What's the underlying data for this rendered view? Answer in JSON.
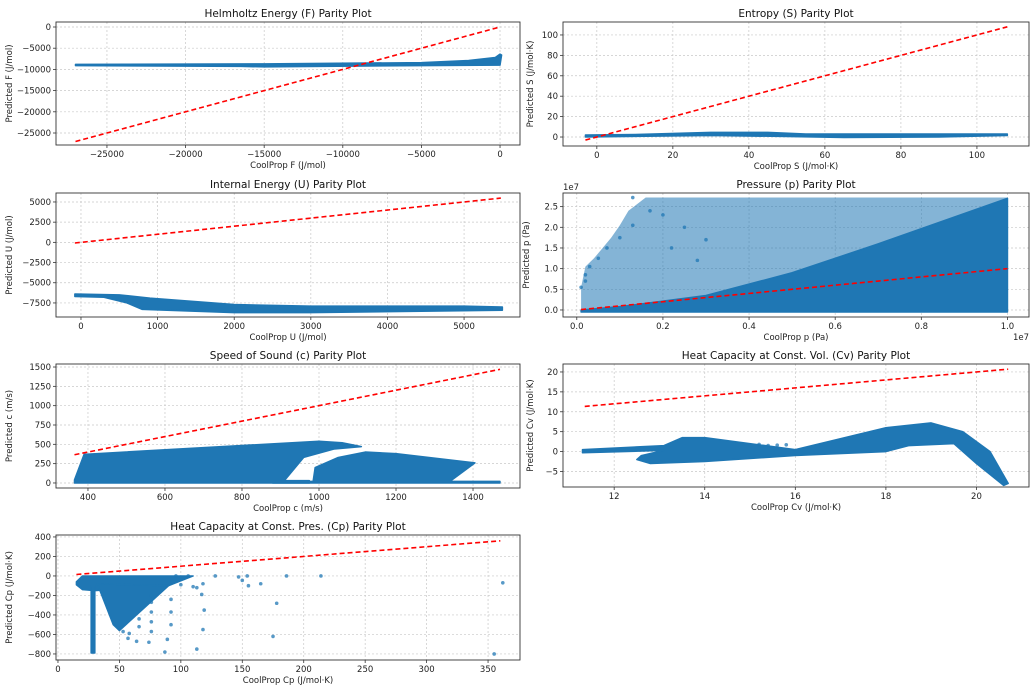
{
  "colors": {
    "scatter": "#1f77b4",
    "parity_line": "#ff0000",
    "grid": "#c8c8c8"
  },
  "chart_data": [
    {
      "type": "scatter",
      "title": "Helmholtz Energy (F) Parity Plot",
      "xlabel": "CoolProp F (J/mol)",
      "ylabel": "Predicted F (J/mol)",
      "xlim": [
        -28240,
        1270
      ],
      "ylim": [
        -27830,
        1180
      ],
      "xticks": [
        -25000,
        -20000,
        -15000,
        -10000,
        -5000,
        0
      ],
      "yticks": [
        0,
        -5000,
        -10000,
        -15000,
        -20000,
        -25000
      ],
      "grid": true,
      "parity_line": [
        -27000,
        0
      ],
      "clouds": [
        [
          [
            -27000,
            -8800
          ],
          [
            -15000,
            -8700
          ],
          [
            -5000,
            -8400
          ],
          [
            -2000,
            -7900
          ],
          [
            -300,
            -7200
          ],
          [
            0,
            -6400
          ],
          [
            100,
            -6600
          ],
          [
            0,
            -9000
          ],
          [
            -5000,
            -9100
          ],
          [
            -15000,
            -9400
          ],
          [
            -16500,
            -9300
          ],
          [
            -27000,
            -9100
          ]
        ]
      ],
      "points": []
    },
    {
      "type": "scatter",
      "title": "Entropy (S) Parity Plot",
      "xlabel": "CoolProp S (J/mol·K)",
      "ylabel": "Predicted S (J/mol·K)",
      "xlim": [
        -8.9,
        113.7
      ],
      "ylim": [
        -8.8,
        112.7
      ],
      "xticks": [
        0,
        20,
        40,
        60,
        80,
        100
      ],
      "yticks": [
        0,
        20,
        40,
        60,
        80,
        100
      ],
      "grid": true,
      "parity_line": [
        -3,
        108
      ],
      "clouds": [
        [
          [
            -3,
            0.5
          ],
          [
            -3,
            2
          ],
          [
            10,
            2.5
          ],
          [
            30,
            4.5
          ],
          [
            45,
            4.5
          ],
          [
            55,
            3
          ],
          [
            70,
            3
          ],
          [
            108,
            3
          ],
          [
            108,
            1.5
          ],
          [
            90,
            0
          ],
          [
            65,
            -0.5
          ],
          [
            50,
            0.5
          ],
          [
            30,
            1.5
          ],
          [
            -3,
            0
          ]
        ]
      ],
      "points": []
    },
    {
      "type": "scatter",
      "title": "Internal Energy (U) Parity Plot",
      "xlabel": "CoolProp U (J/mol)",
      "ylabel": "Predicted U (J/mol)",
      "xlim": [
        -326,
        5730
      ],
      "ylim": [
        -9240,
        6110
      ],
      "xticks": [
        0,
        1000,
        2000,
        3000,
        4000,
        5000
      ],
      "yticks": [
        5000,
        2500,
        0,
        -2500,
        -5000,
        -7500
      ],
      "grid": true,
      "parity_line": [
        -80,
        5480
      ],
      "clouds": [
        [
          [
            -80,
            -6400
          ],
          [
            500,
            -6500
          ],
          [
            900,
            -6900
          ],
          [
            2000,
            -7700
          ],
          [
            3000,
            -7900
          ],
          [
            5000,
            -7900
          ],
          [
            5500,
            -8000
          ],
          [
            5500,
            -8400
          ],
          [
            3000,
            -8700
          ],
          [
            2000,
            -8700
          ],
          [
            800,
            -8300
          ],
          [
            600,
            -7500
          ],
          [
            300,
            -6800
          ],
          [
            -80,
            -6700
          ]
        ]
      ],
      "points": []
    },
    {
      "type": "scatter",
      "title": "Pressure (p) Parity Plot",
      "xlabel": "CoolProp p (Pa)",
      "ylabel": "Predicted p (Pa)",
      "x_offset_text": "1e7",
      "y_offset_text": "1e7",
      "xlim": [
        -0.032,
        1.05
      ],
      "ylim": [
        -0.17,
        2.83
      ],
      "xticks": [
        0.0,
        0.2,
        0.4,
        0.6,
        0.8,
        1.0
      ],
      "yticks": [
        0.0,
        0.5,
        1.0,
        1.5,
        2.0,
        2.5
      ],
      "tick_format": 1,
      "grid": true,
      "parity_line": [
        0.01,
        1.0
      ],
      "clouds_light": [
        [
          [
            0.01,
            0.55
          ],
          [
            0.02,
            1.05
          ],
          [
            0.04,
            1.25
          ],
          [
            0.06,
            1.5
          ],
          [
            0.08,
            1.75
          ],
          [
            0.1,
            2.05
          ],
          [
            0.12,
            2.4
          ],
          [
            0.16,
            2.72
          ],
          [
            1.0,
            2.72
          ],
          [
            1.0,
            0
          ],
          [
            0.01,
            0
          ]
        ]
      ],
      "clouds": [
        [
          [
            0.01,
            0
          ],
          [
            0.1,
            0.08
          ],
          [
            0.3,
            0.35
          ],
          [
            0.5,
            0.9
          ],
          [
            0.7,
            1.6
          ],
          [
            1.0,
            2.7
          ],
          [
            1.0,
            -0.05
          ],
          [
            0.01,
            -0.05
          ]
        ]
      ],
      "points": [
        [
          0.01,
          0.55
        ],
        [
          0.02,
          0.7
        ],
        [
          0.02,
          0.85
        ],
        [
          0.03,
          1.05
        ],
        [
          0.05,
          1.25
        ],
        [
          0.07,
          1.5
        ],
        [
          0.1,
          1.75
        ],
        [
          0.13,
          2.05
        ],
        [
          0.17,
          2.4
        ],
        [
          0.13,
          2.72
        ],
        [
          0.2,
          2.3
        ],
        [
          0.25,
          2.0
        ],
        [
          0.3,
          1.7
        ],
        [
          0.22,
          1.5
        ],
        [
          0.28,
          1.2
        ]
      ]
    },
    {
      "type": "scatter",
      "title": "Speed of Sound (c) Parity Plot",
      "xlabel": "CoolProp c (m/s)",
      "ylabel": "Predicted c (m/s)",
      "xlim": [
        317,
        1522
      ],
      "ylim": [
        -65,
        1539
      ],
      "xticks": [
        400,
        600,
        800,
        1000,
        1200,
        1400
      ],
      "yticks": [
        0,
        250,
        500,
        750,
        1000,
        1250,
        1500
      ],
      "grid": true,
      "parity_line": [
        365,
        1470
      ],
      "clouds": [
        [
          [
            365,
            0
          ],
          [
            365,
            40
          ],
          [
            390,
            370
          ],
          [
            600,
            430
          ],
          [
            1000,
            540
          ],
          [
            1060,
            520
          ],
          [
            1110,
            470
          ],
          [
            1040,
            440
          ],
          [
            960,
            330
          ],
          [
            910,
            30
          ],
          [
            975,
            30
          ],
          [
            975,
            0
          ]
        ],
        [
          [
            985,
            30
          ],
          [
            990,
            200
          ],
          [
            1050,
            330
          ],
          [
            1120,
            400
          ],
          [
            1200,
            380
          ],
          [
            1405,
            260
          ],
          [
            1340,
            20
          ],
          [
            1470,
            20
          ],
          [
            1470,
            0
          ],
          [
            880,
            0
          ],
          [
            880,
            20
          ],
          [
            985,
            20
          ]
        ]
      ],
      "points": []
    },
    {
      "type": "scatter",
      "title": "Heat Capacity at Const. Vol. (Cv) Parity Plot",
      "xlabel": "CoolProp Cv (J/mol·K)",
      "ylabel": "Predicted Cv (J/mol·K)",
      "xlim": [
        10.87,
        21.16
      ],
      "ylim": [
        -8.9,
        22
      ],
      "xticks": [
        12,
        14,
        16,
        18,
        20
      ],
      "yticks": [
        -5,
        0,
        5,
        10,
        15,
        20
      ],
      "grid": true,
      "parity_line": [
        11.35,
        20.7
      ],
      "clouds": [
        [
          [
            11.3,
            0
          ],
          [
            11.3,
            0.5
          ],
          [
            13.1,
            1.5
          ],
          [
            13.5,
            3.5
          ],
          [
            14,
            3.5
          ],
          [
            16,
            0.5
          ],
          [
            18,
            6
          ],
          [
            19,
            7.2
          ],
          [
            19.7,
            5
          ],
          [
            20.3,
            0
          ],
          [
            20.7,
            -8
          ],
          [
            20.6,
            -8.5
          ],
          [
            20,
            -3
          ],
          [
            19.5,
            2
          ],
          [
            18.5,
            1.5
          ],
          [
            18,
            0
          ],
          [
            16,
            -1
          ],
          [
            14,
            -2.5
          ],
          [
            12.8,
            -3
          ],
          [
            12.5,
            -2
          ],
          [
            12.6,
            -1
          ],
          [
            13.1,
            0.3
          ],
          [
            11.3,
            -0.3
          ]
        ]
      ],
      "points": [
        [
          15.2,
          1.8
        ],
        [
          15.4,
          1.5
        ],
        [
          15.6,
          1.6
        ],
        [
          15.8,
          1.7
        ]
      ]
    },
    {
      "type": "scatter",
      "title": "Heat Capacity at Const. Pres. (Cp) Parity Plot",
      "xlabel": "CoolProp Cp (J/mol·K)",
      "ylabel": "Predicted Cp (J/mol·K)",
      "xlim": [
        -1.6,
        376
      ],
      "ylim": [
        -862,
        420
      ],
      "xticks": [
        0,
        50,
        100,
        150,
        200,
        250,
        300,
        350
      ],
      "yticks": [
        400,
        200,
        0,
        -200,
        -400,
        -600,
        -800
      ],
      "grid": true,
      "parity_line": [
        15,
        360
      ],
      "clouds": [
        [
          [
            15,
            -60
          ],
          [
            20,
            0
          ],
          [
            110,
            0
          ],
          [
            90,
            -100
          ],
          [
            30,
            -150
          ],
          [
            20,
            -140
          ],
          [
            15,
            -90
          ]
        ],
        [
          [
            27,
            -100
          ],
          [
            30,
            -100
          ],
          [
            30,
            -790
          ],
          [
            27,
            -790
          ]
        ],
        [
          [
            32,
            -80
          ],
          [
            90,
            -100
          ],
          [
            50,
            -560
          ],
          [
            45,
            -500
          ]
        ]
      ],
      "points": [
        [
          128,
          0
        ],
        [
          147,
          -10
        ],
        [
          150,
          -45
        ],
        [
          154,
          0
        ],
        [
          155,
          -100
        ],
        [
          165,
          -80
        ],
        [
          178,
          -280
        ],
        [
          175,
          -620
        ],
        [
          186,
          0
        ],
        [
          214,
          0
        ],
        [
          355,
          -800
        ],
        [
          362,
          -70
        ],
        [
          113,
          -750
        ],
        [
          87,
          -780
        ],
        [
          74,
          -680
        ],
        [
          64,
          -670
        ],
        [
          118,
          -550
        ],
        [
          119,
          -350
        ],
        [
          117,
          -190
        ],
        [
          118,
          -80
        ],
        [
          113,
          -120
        ],
        [
          92,
          -500
        ],
        [
          92,
          -370
        ],
        [
          92,
          -240
        ],
        [
          76,
          -570
        ],
        [
          76,
          -470
        ],
        [
          76,
          -370
        ],
        [
          76,
          -270
        ],
        [
          76,
          -200
        ],
        [
          89,
          -650
        ],
        [
          100,
          -90
        ],
        [
          110,
          -110
        ],
        [
          106,
          0
        ],
        [
          96,
          0
        ],
        [
          57,
          -640
        ],
        [
          53,
          -570
        ],
        [
          58,
          -590
        ],
        [
          66,
          -520
        ],
        [
          66,
          -440
        ]
      ]
    }
  ]
}
